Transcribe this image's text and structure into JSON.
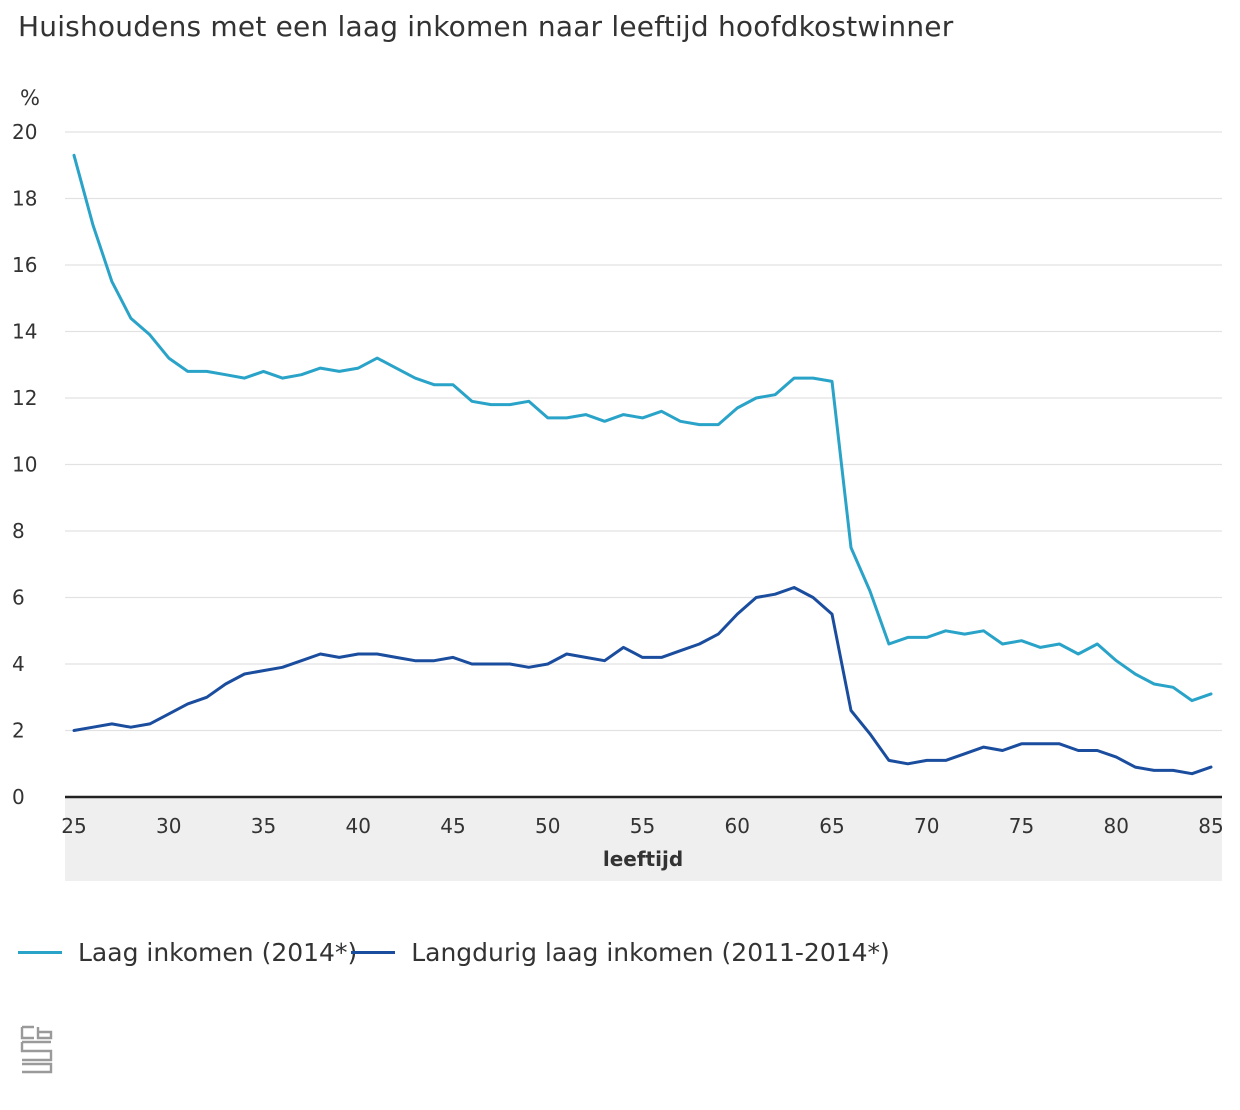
{
  "title": "Huishoudens met een laag inkomen naar leeftijd hoofdkostwinner",
  "logo_icon": "cbs-logo-icon",
  "chart_data": {
    "type": "line",
    "title": "Huishoudens met een laag inkomen naar leeftijd hoofdkostwinner",
    "unit_label": "%",
    "xlabel": "leeftijd",
    "ylabel": "",
    "xlim": [
      25,
      85
    ],
    "ylim": [
      0,
      20
    ],
    "x_ticks": [
      25,
      30,
      35,
      40,
      45,
      50,
      55,
      60,
      65,
      70,
      75,
      80,
      85
    ],
    "y_ticks": [
      0,
      2,
      4,
      6,
      8,
      10,
      12,
      14,
      16,
      18,
      20
    ],
    "grid": "horizontal",
    "legend_position": "bottom-left",
    "x": [
      25,
      26,
      27,
      28,
      29,
      30,
      31,
      32,
      33,
      34,
      35,
      36,
      37,
      38,
      39,
      40,
      41,
      42,
      43,
      44,
      45,
      46,
      47,
      48,
      49,
      50,
      51,
      52,
      53,
      54,
      55,
      56,
      57,
      58,
      59,
      60,
      61,
      62,
      63,
      64,
      65,
      66,
      67,
      68,
      69,
      70,
      71,
      72,
      73,
      74,
      75,
      76,
      77,
      78,
      79,
      80,
      81,
      82,
      83,
      84,
      85
    ],
    "series": [
      {
        "name": "Laag inkomen (2014*)",
        "color": "#2aa3c8",
        "values": [
          19.3,
          17.2,
          15.5,
          14.4,
          13.9,
          13.2,
          12.8,
          12.8,
          12.7,
          12.6,
          12.8,
          12.6,
          12.7,
          12.9,
          12.8,
          12.9,
          13.2,
          12.9,
          12.6,
          12.4,
          12.4,
          11.9,
          11.8,
          11.8,
          11.9,
          11.4,
          11.4,
          11.5,
          11.3,
          11.5,
          11.4,
          11.6,
          11.3,
          11.2,
          11.2,
          11.7,
          12.0,
          12.1,
          12.6,
          12.6,
          12.5,
          7.5,
          6.2,
          4.6,
          4.8,
          4.8,
          5.0,
          4.9,
          5.0,
          4.6,
          4.7,
          4.5,
          4.6,
          4.3,
          4.6,
          4.1,
          3.7,
          3.4,
          3.3,
          2.9,
          3.1
        ]
      },
      {
        "name": "Langdurig laag inkomen (2011-2014*)",
        "color": "#1b4d9e",
        "values": [
          2.0,
          2.1,
          2.2,
          2.1,
          2.2,
          2.5,
          2.8,
          3.0,
          3.4,
          3.7,
          3.8,
          3.9,
          4.1,
          4.3,
          4.2,
          4.3,
          4.3,
          4.2,
          4.1,
          4.1,
          4.2,
          4.0,
          4.0,
          4.0,
          3.9,
          4.0,
          4.3,
          4.2,
          4.1,
          4.5,
          4.2,
          4.2,
          4.4,
          4.6,
          4.9,
          5.5,
          6.0,
          6.1,
          6.3,
          6.0,
          5.5,
          2.6,
          1.9,
          1.1,
          1.0,
          1.1,
          1.1,
          1.3,
          1.5,
          1.4,
          1.6,
          1.6,
          1.6,
          1.4,
          1.4,
          1.2,
          0.9,
          0.8,
          0.8,
          0.7,
          0.9
        ]
      }
    ]
  }
}
